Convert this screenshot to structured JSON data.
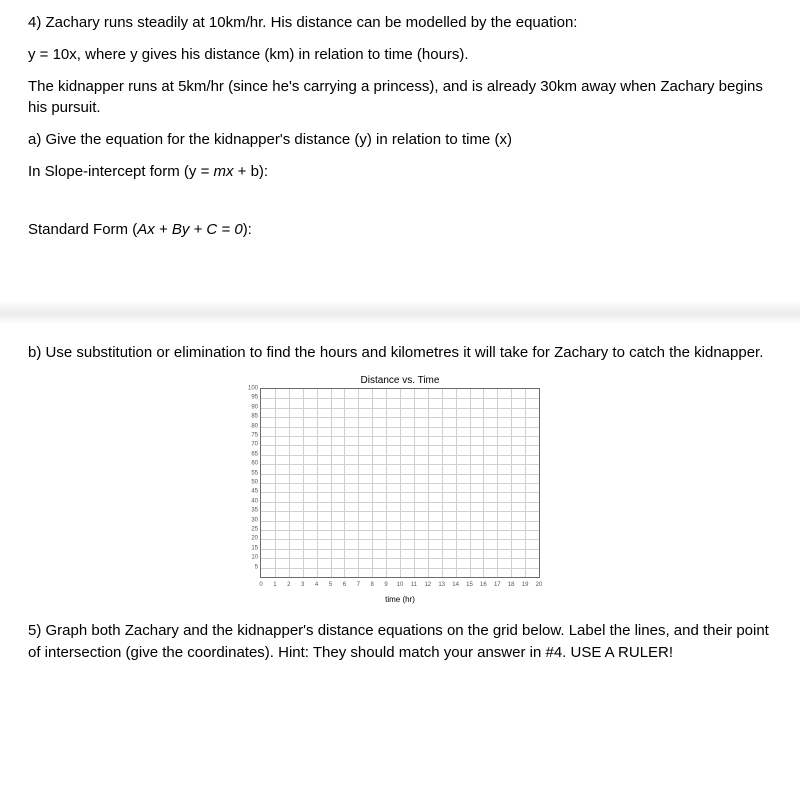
{
  "q4": {
    "intro1": "4) Zachary runs steadily at 10km/hr. His distance can be modelled by the equation:",
    "intro2": "y = 10x, where y gives his distance (km) in relation to time (hours).",
    "intro3": " The kidnapper runs at 5km/hr (since he's carrying a princess), and is already 30km away when Zachary begins his pursuit.",
    "partA": "a) Give the equation for the kidnapper's distance (y) in relation to time (x)",
    "slopeForm_pre": "In Slope-intercept form (y = ",
    "slopeForm_mx": "mx",
    "slopeForm_post": " + b):",
    "stdForm_pre": "Standard Form (",
    "stdForm_eq": "Ax + By + C = 0",
    "stdForm_post": "):"
  },
  "q4b": {
    "text": "b) Use substitution or elimination to find the hours and kilometres it will take for Zachary to catch the kidnapper."
  },
  "chart": {
    "title": "Distance vs. Time",
    "xlabel": "time (hr)",
    "xlim": [
      0,
      20
    ],
    "ylim": [
      0,
      100
    ],
    "xtick_step": 1,
    "ytick_step": 5,
    "xticks": [
      0,
      1,
      2,
      3,
      4,
      5,
      6,
      7,
      8,
      9,
      10,
      11,
      12,
      13,
      14,
      15,
      16,
      17,
      18,
      19,
      20
    ],
    "yticks": [
      5,
      10,
      15,
      20,
      25,
      30,
      35,
      40,
      45,
      50,
      55,
      60,
      65,
      70,
      75,
      80,
      85,
      90,
      95,
      100
    ],
    "background_color": "#ffffff",
    "grid_color": "#cfcfcf",
    "border_color": "#6b6b6b",
    "title_fontsize": 10,
    "tick_fontsize": 6,
    "xlabel_fontsize": 8
  },
  "q5": {
    "text": " 5) Graph both Zachary and the kidnapper's distance equations on the grid below. Label the lines, and their point of intersection (give the coordinates). Hint: They should match your answer in #4. USE A RULER!"
  }
}
